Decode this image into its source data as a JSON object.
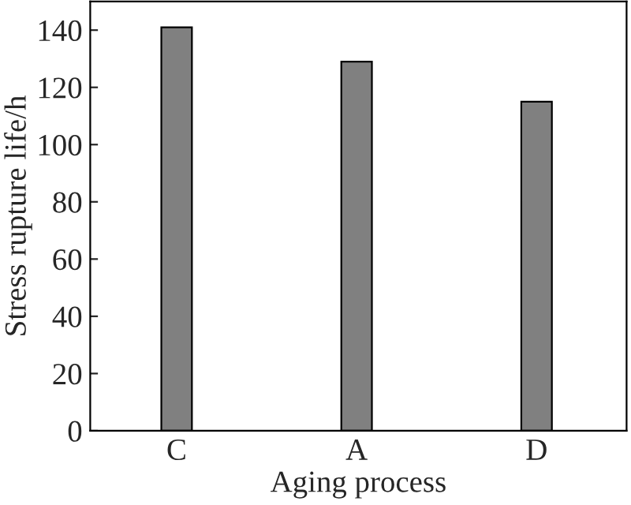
{
  "chart_data": {
    "type": "bar",
    "xlabel": "Aging process",
    "ylabel": "Stress rupture life/h",
    "categories": [
      "C",
      "A",
      "D"
    ],
    "values": [
      141,
      129,
      115
    ],
    "color": "#808080",
    "ylim": [
      0,
      150
    ],
    "yticks": [
      0,
      20,
      40,
      60,
      80,
      100,
      120,
      140
    ],
    "grid": false
  }
}
